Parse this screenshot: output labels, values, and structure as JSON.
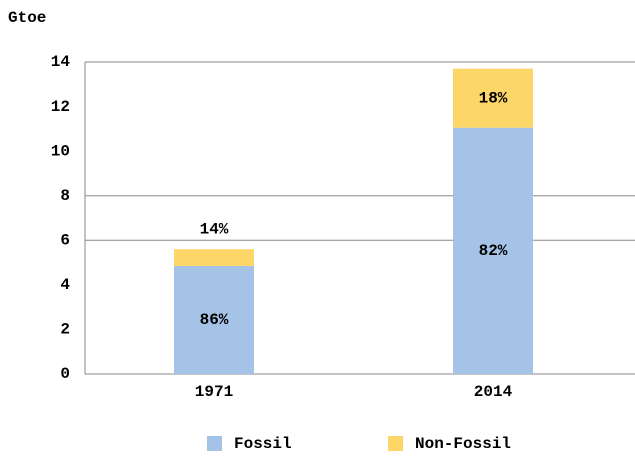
{
  "chart_data": {
    "type": "stacked_bar",
    "y_label": "Gtoe",
    "categories": [
      "1971",
      "2014"
    ],
    "series": [
      {
        "name": "Fossil",
        "color": "#a5c3e6",
        "values": [
          4.85,
          11.05
        ],
        "labels": [
          "86%",
          "82%"
        ]
      },
      {
        "name": "Non-Fossil",
        "color": "#fdd668",
        "values": [
          0.75,
          2.65
        ],
        "labels": [
          "14%",
          "18%"
        ]
      }
    ],
    "ylim": [
      0,
      14
    ],
    "yticks": [
      0,
      2,
      4,
      6,
      8,
      10,
      12,
      14
    ],
    "grid_lines": [
      6,
      8,
      14
    ],
    "legend": "bottom"
  }
}
